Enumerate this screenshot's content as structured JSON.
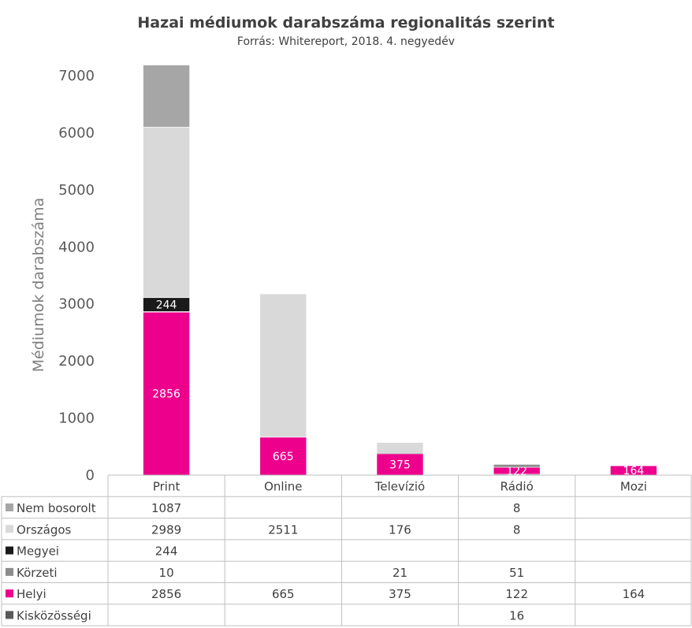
{
  "chart_data": {
    "type": "bar",
    "stacked": true,
    "title": "Hazai médiumok darabszáma regionalitás szerint",
    "subtitle": "Forrás: Whitereport, 2018. 4. negyedév",
    "ylabel": "Médiumok darabszáma",
    "ylim": [
      0,
      7000
    ],
    "yticks": [
      0,
      1000,
      2000,
      3000,
      4000,
      5000,
      6000,
      7000
    ],
    "categories": [
      "Print",
      "Online",
      "Televízió",
      "Rádió",
      "Mozi"
    ],
    "series": [
      {
        "name": "Nem bosorolt",
        "color": "#a6a6a6",
        "values": [
          1087,
          null,
          null,
          8,
          null
        ]
      },
      {
        "name": "Országos",
        "color": "#d9d9d9",
        "values": [
          2989,
          2511,
          176,
          8,
          null
        ]
      },
      {
        "name": "Megyei",
        "color": "#1a1a1a",
        "values": [
          244,
          null,
          null,
          null,
          null
        ]
      },
      {
        "name": "Körzeti",
        "color": "#8c8c8c",
        "values": [
          10,
          null,
          21,
          51,
          null
        ]
      },
      {
        "name": "Helyi",
        "color": "#ec008c",
        "values": [
          2856,
          665,
          375,
          122,
          164
        ]
      },
      {
        "name": "Kisközösségi",
        "color": "#595959",
        "values": [
          null,
          null,
          null,
          16,
          null
        ]
      }
    ],
    "stack_order_bottom_to_top": [
      "Kisközösségi",
      "Helyi",
      "Körzeti",
      "Megyei",
      "Országos",
      "Nem bosorolt"
    ],
    "data_labels_shown": {
      "Helyi": [
        2856,
        665,
        375,
        122,
        164
      ],
      "Megyei": [
        244,
        null,
        null,
        null,
        null
      ]
    },
    "legend": "data table below chart"
  }
}
